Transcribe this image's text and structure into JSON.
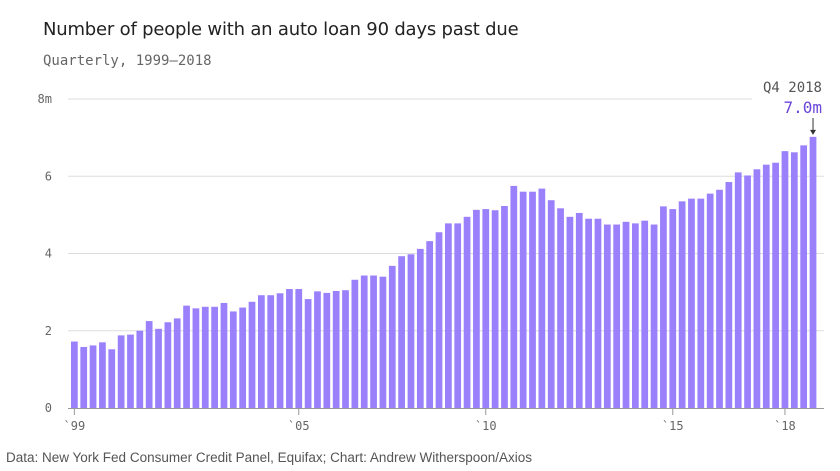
{
  "header": {
    "title": "Number of people with an auto loan 90 days past due",
    "subtitle": "Quarterly, 1999–2018"
  },
  "footer": {
    "source": "Data: New York Fed Consumer Credit Panel, Equifax; Chart: Andrew Witherspoon/Axios"
  },
  "colors": {
    "bar": "#9b80fb",
    "accent": "#6b46d9",
    "grid": "#dddddd",
    "axis": "#999999"
  },
  "chart_data": {
    "type": "bar",
    "title": "Number of people with an auto loan 90 days past due",
    "subtitle": "Quarterly, 1999–2018",
    "xlabel": "",
    "ylabel": "",
    "ylim": [
      0,
      8
    ],
    "y_ticks": [
      {
        "value": 0,
        "label": "0"
      },
      {
        "value": 2,
        "label": "2"
      },
      {
        "value": 4,
        "label": "4"
      },
      {
        "value": 6,
        "label": "6"
      },
      {
        "value": 8,
        "label": "8m"
      }
    ],
    "x_ticks": [
      {
        "index": 0,
        "label": "`99"
      },
      {
        "index": 24,
        "label": "`05"
      },
      {
        "index": 44,
        "label": "`10"
      },
      {
        "index": 64,
        "label": "`15"
      },
      {
        "index": 76,
        "label": "`18"
      }
    ],
    "grid": true,
    "annotation": {
      "index": 79,
      "period": "Q4 2018",
      "value_label": "7.0m"
    },
    "values": [
      1.72,
      1.58,
      1.62,
      1.7,
      1.52,
      1.88,
      1.9,
      2.0,
      2.25,
      2.05,
      2.22,
      2.32,
      2.65,
      2.58,
      2.62,
      2.62,
      2.72,
      2.5,
      2.6,
      2.75,
      2.92,
      2.92,
      2.97,
      3.08,
      3.08,
      2.82,
      3.02,
      2.98,
      3.03,
      3.05,
      3.32,
      3.43,
      3.43,
      3.4,
      3.68,
      3.93,
      3.98,
      4.12,
      4.32,
      4.55,
      4.78,
      4.78,
      4.95,
      5.13,
      5.15,
      5.12,
      5.23,
      5.75,
      5.6,
      5.6,
      5.68,
      5.38,
      5.17,
      4.95,
      5.05,
      4.9,
      4.9,
      4.75,
      4.75,
      4.82,
      4.78,
      4.85,
      4.75,
      5.22,
      5.15,
      5.35,
      5.42,
      5.42,
      5.55,
      5.65,
      5.85,
      6.1,
      6.02,
      6.18,
      6.3,
      6.35,
      6.65,
      6.62,
      6.8,
      7.02
    ]
  }
}
